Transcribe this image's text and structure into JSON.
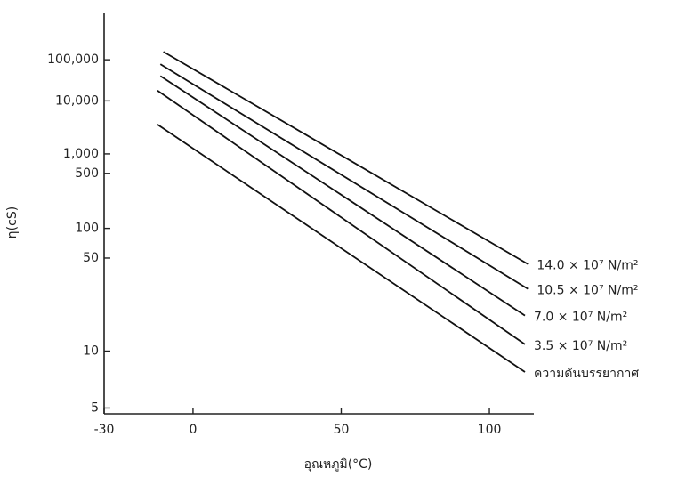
{
  "chart_data": {
    "type": "line",
    "y_label": "η(cS)",
    "x_label": "อุณหภูมิ(°C)",
    "yscale": "walther",
    "xlim": [
      -30,
      115
    ],
    "ylim": [
      4.7,
      2700000
    ],
    "xticks": [
      -30,
      0,
      50,
      100
    ],
    "yticks": [
      5,
      10,
      50,
      100,
      {
        "value": 500,
        "label": "500"
      },
      {
        "value": 1000,
        "label": "1,000"
      },
      {
        "value": 10000,
        "label": "10,000"
      },
      {
        "value": 100000,
        "label": "100,000"
      }
    ],
    "series": [
      {
        "name": "14.0 × 10⁷ N/m²",
        "color": "#111111",
        "x": [
          -10,
          113
        ],
        "values": [
          167000,
          44
        ]
      },
      {
        "name": "10.5 × 10⁷ N/m²",
        "color": "#111111",
        "x": [
          -11,
          113
        ],
        "values": [
          76000,
          27
        ]
      },
      {
        "name": "7.0 × 10⁷ N/m²",
        "color": "#111111",
        "x": [
          -11,
          112
        ],
        "values": [
          38000,
          17
        ]
      },
      {
        "name": "3.5 × 10⁷ N/m²",
        "color": "#111111",
        "x": [
          -12,
          112
        ],
        "values": [
          17000,
          11
        ]
      },
      {
        "name": "ความดันบรรยากาศ",
        "color": "#111111",
        "x": [
          -12,
          112
        ],
        "values": [
          3300,
          7.6
        ]
      }
    ]
  }
}
